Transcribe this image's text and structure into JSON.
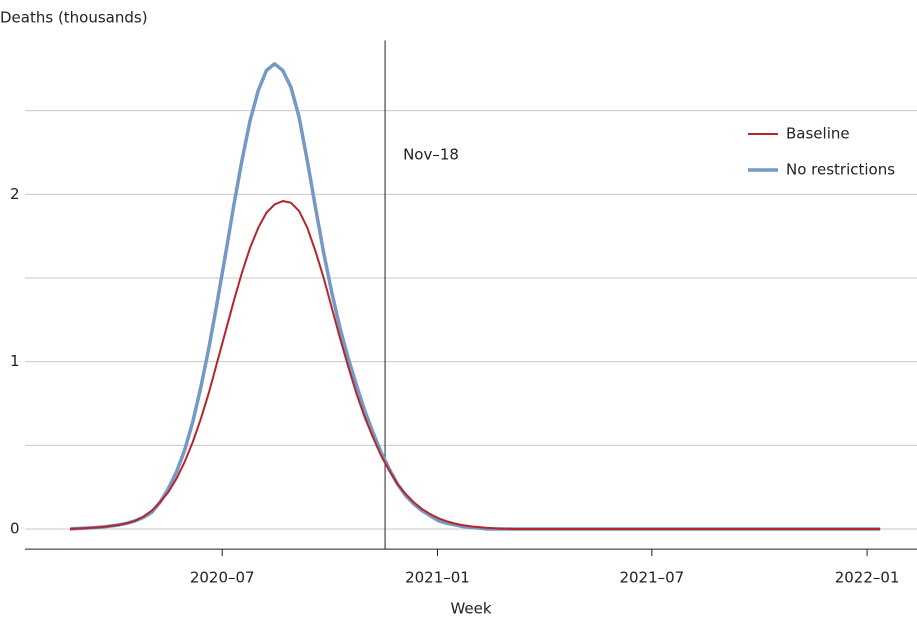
{
  "chart_data": {
    "type": "line",
    "y_label": "Deaths (thousands)",
    "x_label": "Week",
    "x": [
      0,
      1,
      2,
      3,
      4,
      5,
      6,
      7,
      8,
      9,
      10,
      11,
      12,
      13,
      14,
      15,
      16,
      17,
      18,
      19,
      20,
      21,
      22,
      23,
      24,
      25,
      26,
      27,
      28,
      29,
      30,
      31,
      32,
      33,
      34,
      35,
      36,
      37,
      38,
      39,
      40,
      41,
      42,
      43,
      44,
      45,
      46,
      47,
      48,
      49,
      50,
      51,
      52,
      53,
      54,
      55,
      56,
      57,
      58,
      59,
      60,
      61,
      62,
      63,
      64,
      65,
      66,
      67,
      68,
      69,
      70,
      71,
      72,
      73,
      74,
      75,
      76,
      77,
      78,
      79,
      80,
      81,
      82,
      83,
      84,
      85,
      86,
      87,
      88,
      89,
      90,
      91,
      92,
      93,
      94,
      95,
      96,
      97,
      98,
      99
    ],
    "series": [
      {
        "name": "Baseline",
        "color": "#b5252a",
        "values": [
          0,
          0.003,
          0.005,
          0.008,
          0.012,
          0.018,
          0.025,
          0.035,
          0.05,
          0.075,
          0.11,
          0.16,
          0.22,
          0.3,
          0.4,
          0.52,
          0.66,
          0.82,
          1.0,
          1.18,
          1.36,
          1.53,
          1.68,
          1.8,
          1.89,
          1.94,
          1.96,
          1.95,
          1.9,
          1.8,
          1.66,
          1.5,
          1.32,
          1.14,
          0.97,
          0.81,
          0.67,
          0.55,
          0.44,
          0.35,
          0.27,
          0.21,
          0.16,
          0.12,
          0.09,
          0.065,
          0.047,
          0.033,
          0.023,
          0.016,
          0.011,
          0.007,
          0.004,
          0.002,
          0,
          0,
          0,
          0,
          0,
          0,
          0,
          0,
          0,
          0,
          0,
          0,
          0,
          0,
          0,
          0,
          0,
          0,
          0,
          0,
          0,
          0,
          0,
          0,
          0,
          0,
          0,
          0,
          0,
          0,
          0,
          0,
          0,
          0,
          0,
          0,
          0,
          0,
          0,
          0,
          0,
          0,
          0,
          0,
          0,
          0
        ]
      },
      {
        "name": "No restrictions",
        "color": "#7399c6",
        "values": [
          0,
          0.003,
          0.005,
          0.008,
          0.012,
          0.018,
          0.025,
          0.035,
          0.05,
          0.07,
          0.1,
          0.16,
          0.24,
          0.34,
          0.47,
          0.64,
          0.85,
          1.09,
          1.36,
          1.64,
          1.93,
          2.2,
          2.44,
          2.62,
          2.74,
          2.78,
          2.74,
          2.64,
          2.46,
          2.2,
          1.92,
          1.65,
          1.41,
          1.2,
          1.02,
          0.86,
          0.71,
          0.58,
          0.46,
          0.36,
          0.27,
          0.2,
          0.15,
          0.11,
          0.08,
          0.05,
          0.035,
          0.025,
          0.015,
          0.01,
          0.005,
          0,
          0,
          0,
          0,
          0,
          0,
          0,
          0,
          0,
          0,
          0,
          0,
          0,
          0,
          0,
          0,
          0,
          0,
          0,
          0,
          0,
          0,
          0,
          0,
          0,
          0,
          0,
          0,
          0,
          0,
          0,
          0,
          0,
          0,
          0,
          0,
          0,
          0,
          0,
          0,
          0,
          0,
          0,
          0,
          0,
          0,
          0,
          0,
          0
        ]
      }
    ],
    "xlim": [
      -5.5,
      103.5
    ],
    "xticks": [
      {
        "value": 18.6,
        "label": "2020–07"
      },
      {
        "value": 44.9,
        "label": "2021–01"
      },
      {
        "value": 71.1,
        "label": "2021–07"
      },
      {
        "value": 97.4,
        "label": "2022–01"
      }
    ],
    "ylim": [
      -0.12,
      2.92
    ],
    "yticks": [
      0,
      1,
      2
    ],
    "y_minor_ticks": [
      0.5,
      1.5,
      2.5
    ],
    "grid": true,
    "legend": "upper right",
    "annotation": {
      "x": 38.5,
      "label": "Nov–18"
    }
  }
}
